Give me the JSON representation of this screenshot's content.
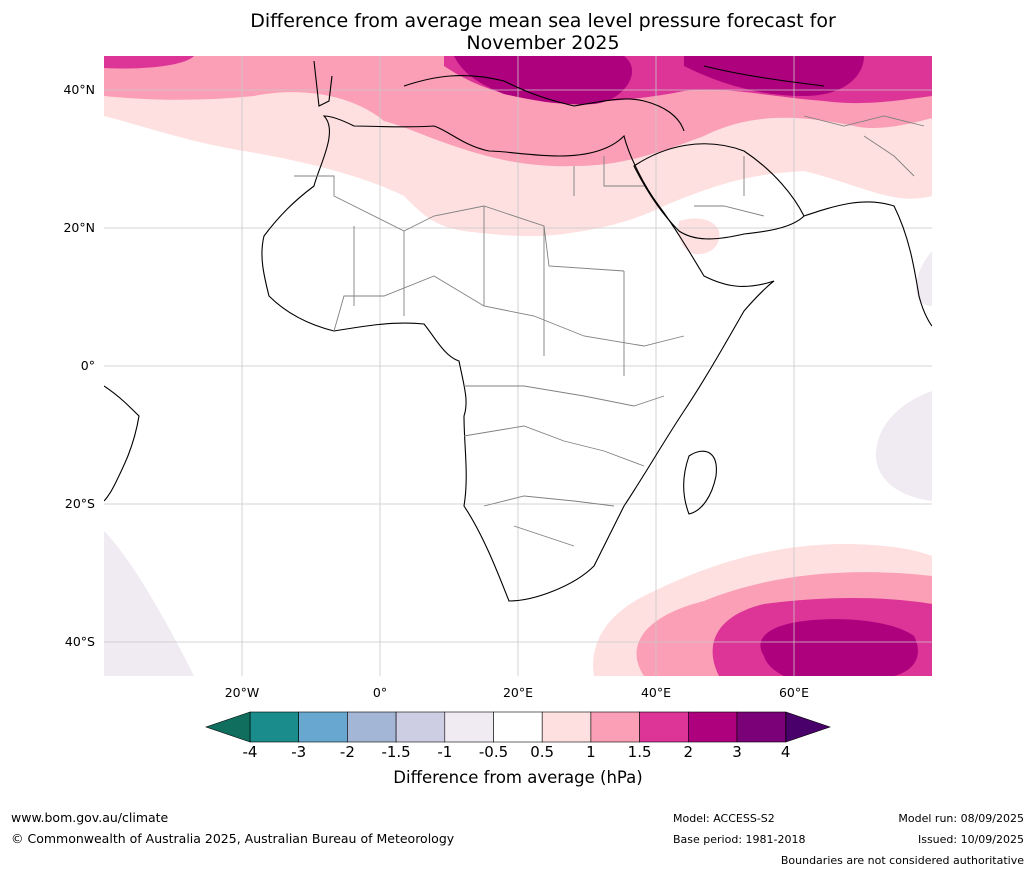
{
  "title_line1": "Difference from average mean sea level pressure forecast for",
  "title_line2": "November 2025",
  "map": {
    "lat_labels": [
      "40°N",
      "20°N",
      "0°",
      "20°S",
      "40°S"
    ],
    "lon_labels": [
      "20°W",
      "0°",
      "20°E",
      "40°E",
      "60°E"
    ],
    "lat_values": [
      40,
      20,
      0,
      -20,
      -40
    ],
    "lon_values": [
      -20,
      0,
      20,
      40,
      60
    ],
    "extent": {
      "lon_min": -40,
      "lon_max": 80,
      "lat_min": -45,
      "lat_max": 45
    }
  },
  "colorbar": {
    "ticks": [
      "-4",
      "-3",
      "-2",
      "-1.5",
      "-1",
      "-0.5",
      "0.5",
      "1",
      "1.5",
      "2",
      "3",
      "4"
    ],
    "colors": [
      "#1a8c8c",
      "#68a8d0",
      "#a3b6d6",
      "#cdcde3",
      "#f0ebf2",
      "#ffffff",
      "#fee0e0",
      "#fa9fb5",
      "#dd3497",
      "#ae017e",
      "#7a0177"
    ],
    "under_color": "#0f6e5e",
    "over_color": "#49006a",
    "label": "Difference from average (hPa)"
  },
  "footer": {
    "website": "www.bom.gov.au/climate",
    "copyright": "© Commonwealth of Australia 2025, Australian Bureau of Meteorology",
    "model": "Model: ACCESS-S2",
    "base_period": "Base period: 1981-2018",
    "model_run": "Model run: 08/09/2025",
    "issued": "Issued: 10/09/2025",
    "disclaimer": "Boundaries are not considered authoritative"
  }
}
